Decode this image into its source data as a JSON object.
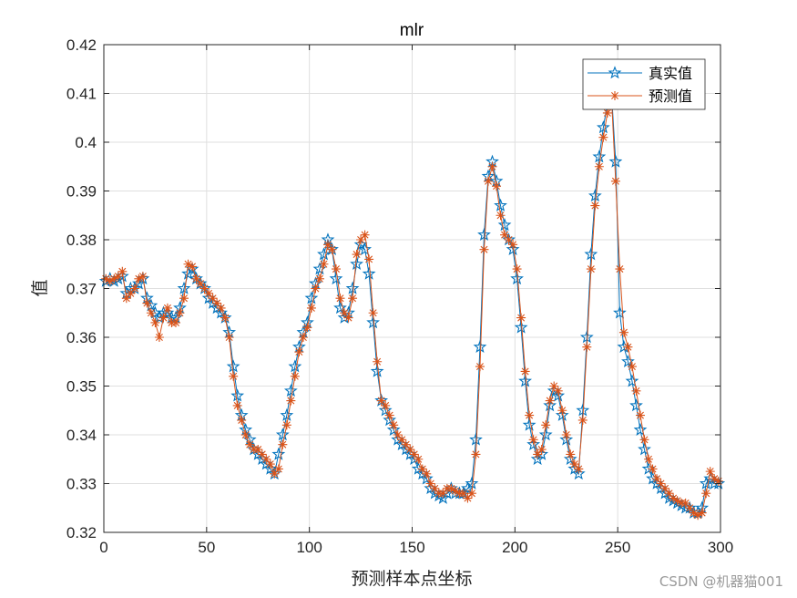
{
  "chart_data": {
    "type": "line",
    "title": "mlr",
    "xlabel": "预测样本点坐标",
    "ylabel": "值",
    "xlim": [
      0,
      300
    ],
    "ylim": [
      0.32,
      0.42
    ],
    "xticks": [
      "0",
      "50",
      "100",
      "150",
      "200",
      "250",
      "300"
    ],
    "yticks": [
      "0.32",
      "0.33",
      "0.34",
      "0.35",
      "0.36",
      "0.37",
      "0.38",
      "0.39",
      "0.4",
      "0.41",
      "0.42"
    ],
    "grid": true,
    "legend_position": "top-right",
    "series": [
      {
        "name": "真实值",
        "color": "#0072BD",
        "marker": "pentagram",
        "x": [
          1,
          3,
          5,
          7,
          9,
          11,
          13,
          15,
          17,
          19,
          21,
          23,
          25,
          27,
          29,
          31,
          33,
          35,
          37,
          39,
          41,
          43,
          45,
          47,
          49,
          51,
          53,
          55,
          57,
          59,
          61,
          63,
          65,
          67,
          69,
          71,
          73,
          75,
          77,
          79,
          81,
          83,
          85,
          87,
          89,
          91,
          93,
          95,
          97,
          99,
          101,
          103,
          105,
          107,
          109,
          111,
          113,
          115,
          117,
          119,
          121,
          123,
          125,
          127,
          129,
          131,
          133,
          135,
          137,
          139,
          141,
          143,
          145,
          147,
          149,
          151,
          153,
          155,
          157,
          159,
          161,
          163,
          165,
          167,
          169,
          171,
          173,
          175,
          177,
          179,
          181,
          183,
          185,
          187,
          189,
          191,
          193,
          195,
          197,
          199,
          201,
          203,
          205,
          207,
          209,
          211,
          213,
          215,
          217,
          219,
          221,
          223,
          225,
          227,
          229,
          231,
          233,
          235,
          237,
          239,
          241,
          243,
          245,
          247,
          249,
          251,
          253,
          255,
          257,
          259,
          261,
          263,
          265,
          267,
          269,
          271,
          273,
          275,
          277,
          279,
          281,
          283,
          285,
          287,
          289,
          291,
          293,
          295,
          297,
          299
        ],
        "y": [
          0.3715,
          0.372,
          0.3715,
          0.372,
          0.3725,
          0.369,
          0.37,
          0.37,
          0.371,
          0.372,
          0.368,
          0.3665,
          0.365,
          0.364,
          0.365,
          0.365,
          0.364,
          0.364,
          0.366,
          0.37,
          0.373,
          0.374,
          0.372,
          0.371,
          0.37,
          0.368,
          0.367,
          0.366,
          0.365,
          0.364,
          0.361,
          0.354,
          0.348,
          0.344,
          0.341,
          0.339,
          0.337,
          0.336,
          0.335,
          0.334,
          0.333,
          0.332,
          0.336,
          0.34,
          0.344,
          0.349,
          0.354,
          0.358,
          0.361,
          0.363,
          0.368,
          0.371,
          0.374,
          0.377,
          0.38,
          0.378,
          0.372,
          0.366,
          0.364,
          0.365,
          0.37,
          0.375,
          0.379,
          0.378,
          0.373,
          0.363,
          0.353,
          0.347,
          0.345,
          0.343,
          0.341,
          0.339,
          0.338,
          0.337,
          0.336,
          0.335,
          0.333,
          0.332,
          0.331,
          0.329,
          0.328,
          0.3275,
          0.327,
          0.328,
          0.329,
          0.328,
          0.328,
          0.328,
          0.329,
          0.33,
          0.339,
          0.358,
          0.381,
          0.393,
          0.396,
          0.392,
          0.387,
          0.383,
          0.38,
          0.378,
          0.372,
          0.362,
          0.351,
          0.342,
          0.338,
          0.335,
          0.336,
          0.34,
          0.346,
          0.349,
          0.348,
          0.344,
          0.339,
          0.335,
          0.333,
          0.332,
          0.345,
          0.36,
          0.377,
          0.389,
          0.397,
          0.403,
          0.408,
          0.41,
          0.396,
          0.365,
          0.358,
          0.355,
          0.351,
          0.346,
          0.341,
          0.337,
          0.333,
          0.331,
          0.33,
          0.329,
          0.328,
          0.327,
          0.3265,
          0.326,
          0.3255,
          0.325,
          0.325,
          0.324,
          0.324,
          0.325,
          0.33,
          0.331,
          0.33,
          0.33
        ]
      },
      {
        "name": "预测值",
        "color": "#D95319",
        "marker": "asterisk",
        "x": [
          1,
          3,
          5,
          7,
          9,
          11,
          13,
          15,
          17,
          19,
          21,
          23,
          25,
          27,
          29,
          31,
          33,
          35,
          37,
          39,
          41,
          43,
          45,
          47,
          49,
          51,
          53,
          55,
          57,
          59,
          61,
          63,
          65,
          67,
          69,
          71,
          73,
          75,
          77,
          79,
          81,
          83,
          85,
          87,
          89,
          91,
          93,
          95,
          97,
          99,
          101,
          103,
          105,
          107,
          109,
          111,
          113,
          115,
          117,
          119,
          121,
          123,
          125,
          127,
          129,
          131,
          133,
          135,
          137,
          139,
          141,
          143,
          145,
          147,
          149,
          151,
          153,
          155,
          157,
          159,
          161,
          163,
          165,
          167,
          169,
          171,
          173,
          175,
          177,
          179,
          181,
          183,
          185,
          187,
          189,
          191,
          193,
          195,
          197,
          199,
          201,
          203,
          205,
          207,
          209,
          211,
          213,
          215,
          217,
          219,
          221,
          223,
          225,
          227,
          229,
          231,
          233,
          235,
          237,
          239,
          241,
          243,
          245,
          247,
          249,
          251,
          253,
          255,
          257,
          259,
          261,
          263,
          265,
          267,
          269,
          271,
          273,
          275,
          277,
          279,
          281,
          283,
          285,
          287,
          289,
          291,
          293,
          295,
          297,
          299
        ],
        "y": [
          0.372,
          0.3715,
          0.372,
          0.3725,
          0.3735,
          0.368,
          0.369,
          0.37,
          0.372,
          0.3725,
          0.367,
          0.365,
          0.363,
          0.36,
          0.364,
          0.366,
          0.363,
          0.363,
          0.365,
          0.368,
          0.375,
          0.3745,
          0.372,
          0.371,
          0.37,
          0.369,
          0.368,
          0.367,
          0.366,
          0.364,
          0.36,
          0.352,
          0.346,
          0.343,
          0.34,
          0.338,
          0.337,
          0.337,
          0.336,
          0.335,
          0.334,
          0.332,
          0.333,
          0.338,
          0.342,
          0.347,
          0.352,
          0.357,
          0.36,
          0.362,
          0.366,
          0.37,
          0.372,
          0.375,
          0.379,
          0.378,
          0.374,
          0.368,
          0.365,
          0.364,
          0.368,
          0.377,
          0.38,
          0.381,
          0.376,
          0.365,
          0.355,
          0.347,
          0.346,
          0.344,
          0.342,
          0.34,
          0.339,
          0.338,
          0.337,
          0.336,
          0.335,
          0.333,
          0.332,
          0.33,
          0.329,
          0.328,
          0.328,
          0.329,
          0.329,
          0.3285,
          0.328,
          0.328,
          0.327,
          0.328,
          0.336,
          0.354,
          0.378,
          0.392,
          0.395,
          0.391,
          0.385,
          0.381,
          0.38,
          0.379,
          0.374,
          0.364,
          0.353,
          0.344,
          0.339,
          0.336,
          0.337,
          0.342,
          0.347,
          0.35,
          0.349,
          0.345,
          0.34,
          0.336,
          0.334,
          0.333,
          0.343,
          0.358,
          0.374,
          0.387,
          0.395,
          0.401,
          0.406,
          0.409,
          0.392,
          0.374,
          0.361,
          0.358,
          0.354,
          0.349,
          0.344,
          0.339,
          0.335,
          0.333,
          0.331,
          0.33,
          0.329,
          0.328,
          0.327,
          0.3265,
          0.326,
          0.326,
          0.325,
          0.324,
          0.3235,
          0.324,
          0.328,
          0.3325,
          0.331,
          0.3305
        ]
      }
    ]
  },
  "watermark": "CSDN @机器猫001"
}
